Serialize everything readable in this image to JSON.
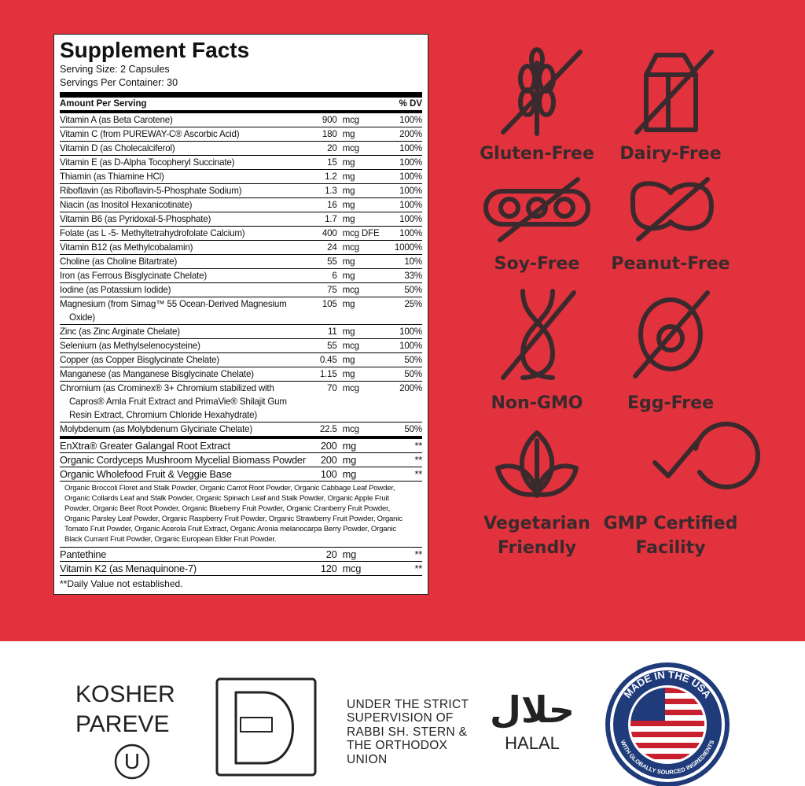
{
  "supplement_facts": {
    "title": "Supplement Facts",
    "serving_size": "Serving Size: 2 Capsules",
    "servings_per_container": "Servings Per Container: 30",
    "header": {
      "amount": "Amount Per Serving",
      "dv": "% DV"
    },
    "rows": [
      {
        "name": "Vitamin A (as Beta Carotene)",
        "amount": "900",
        "unit": "mcg",
        "dv": "100%"
      },
      {
        "name": "Vitamin C (from PUREWAY-C® Ascorbic Acid)",
        "amount": "180",
        "unit": "mg",
        "dv": "200%"
      },
      {
        "name": "Vitamin D (as Cholecalciferol)",
        "amount": "20",
        "unit": "mcg",
        "dv": "100%"
      },
      {
        "name": "Vitamin E (as D-Alpha Tocopheryl Succinate)",
        "amount": "15",
        "unit": "mg",
        "dv": "100%"
      },
      {
        "name": "Thiamin (as Thiamine HCl)",
        "amount": "1.2",
        "unit": "mg",
        "dv": "100%"
      },
      {
        "name": "Riboflavin (as Riboflavin-5-Phosphate Sodium)",
        "amount": "1.3",
        "unit": "mg",
        "dv": "100%"
      },
      {
        "name": "Niacin (as Inositol Hexanicotinate)",
        "amount": "16",
        "unit": "mg",
        "dv": "100%"
      },
      {
        "name": "Vitamin B6 (as Pyridoxal-5-Phosphate)",
        "amount": "1.7",
        "unit": "mg",
        "dv": "100%"
      },
      {
        "name": "Folate (as L -5- Methyltetrahydrofolate Calcium)",
        "amount": "400",
        "unit": "mcg DFE",
        "dv": "100%"
      },
      {
        "name": "Vitamin B12 (as Methylcobalamin)",
        "amount": "24",
        "unit": "mcg",
        "dv": "1000%"
      },
      {
        "name": "Choline (as Choline Bitartrate)",
        "amount": "55",
        "unit": "mg",
        "dv": "10%"
      },
      {
        "name": "Iron (as Ferrous Bisglycinate Chelate)",
        "amount": "6",
        "unit": "mg",
        "dv": "33%"
      },
      {
        "name": "Iodine (as Potassium Iodide)",
        "amount": "75",
        "unit": "mcg",
        "dv": "50%"
      },
      {
        "name": "Magnesium (from Simag™ 55 Ocean-Derived Magnesium Oxide)",
        "amount": "105",
        "unit": "mg",
        "dv": "25%"
      },
      {
        "name": "Zinc (as Zinc Arginate Chelate)",
        "amount": "11",
        "unit": "mg",
        "dv": "100%"
      },
      {
        "name": "Selenium (as Methylselenocysteine)",
        "amount": "55",
        "unit": "mcg",
        "dv": "100%"
      },
      {
        "name": "Copper (as Copper Bisglycinate Chelate)",
        "amount": "0.45",
        "unit": "mg",
        "dv": "50%"
      },
      {
        "name": "Manganese (as Manganese Bisglycinate Chelate)",
        "amount": "1.15",
        "unit": "mg",
        "dv": "50%"
      },
      {
        "name": "Chromium (as Crominex® 3+ Chromium stabilized with Capros® Amla Fruit Extract and PrimaVie® Shilajit Gum Resin Extract, Chromium Chloride Hexahydrate)",
        "amount": "70",
        "unit": "mcg",
        "dv": "200%"
      },
      {
        "name": "Molybdenum (as Molybdenum Glycinate Chelate)",
        "amount": "22.5",
        "unit": "mcg",
        "dv": "50%"
      }
    ],
    "other_rows": [
      {
        "name": "EnXtra® Greater Galangal Root Extract",
        "amount": "200",
        "unit": "mg",
        "dv": "**"
      },
      {
        "name": "Organic Cordyceps Mushroom Mycelial Biomass Powder",
        "amount": "200",
        "unit": "mg",
        "dv": "**"
      },
      {
        "name": "Organic Wholefood Fruit & Veggie Base",
        "amount": "100",
        "unit": "mg",
        "dv": "**",
        "description": "Organic Broccoli Floret and Stalk Powder, Organic Carrot Root Powder, Organic Cabbage Leaf Powder, Organic Collards Leaf and Stalk Powder, Organic Spinach Leaf and Stalk Powder, Organic Apple Fruit Powder, Organic Beet Root Powder, Organic Blueberry Fruit Powder, Organic Cranberry Fruit Powder, Organic Parsley Leaf Powder, Organic Raspberry Fruit Powder, Organic Strawberry Fruit Powder, Organic Tomato Fruit Powder, Organic Acerola Fruit Extract, Organic Aronia melanocarpa Berry Powder, Organic Black Currant Fruit Powder, Organic European Elder Fruit Powder."
      },
      {
        "name": "Pantethine",
        "amount": "20",
        "unit": "mg",
        "dv": "**"
      },
      {
        "name": "Vitamin K2 (as Menaquinone-7)",
        "amount": "120",
        "unit": "mcg",
        "dv": "**"
      }
    ],
    "footnote": "**Daily Value not established."
  },
  "badges": [
    "Gluten-Free",
    "Dairy-Free",
    "Soy-Free",
    "Peanut-Free",
    "Non-GMO",
    "Egg-Free",
    "Vegetarian Friendly",
    "GMP Certified Facility"
  ],
  "certifications": {
    "kosher_lines": [
      "KOSHER",
      "PAREVE"
    ],
    "kosher_symbol": "U",
    "supervision_lines": [
      "UNDER THE STRICT",
      "SUPERVISION OF",
      "RABBI SH. STERN &",
      "THE ORTHODOX",
      "UNION"
    ],
    "halal_arabic": "حلال",
    "halal": "HALAL",
    "usa_top": "MADE IN THE USA",
    "usa_bottom": "WITH GLOBALLY SOURCED INGREDIENTS"
  }
}
